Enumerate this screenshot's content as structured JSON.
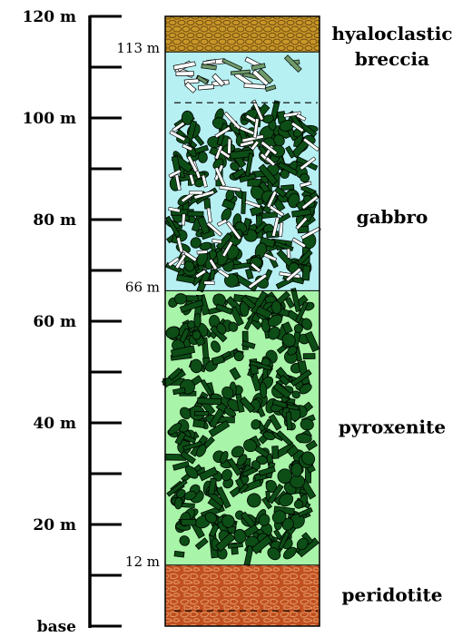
{
  "scale": {
    "labels": [
      {
        "value": 0,
        "text": "base"
      },
      {
        "value": 20,
        "text": "20 m"
      },
      {
        "value": 40,
        "text": "40 m"
      },
      {
        "value": 60,
        "text": "60 m"
      },
      {
        "value": 80,
        "text": "80 m"
      },
      {
        "value": 100,
        "text": "100 m"
      },
      {
        "value": 120,
        "text": "120 m"
      }
    ],
    "minor_ticks": [
      10,
      30,
      50,
      70,
      90,
      110
    ]
  },
  "boundaries": [
    {
      "value": 113,
      "text": "113 m"
    },
    {
      "value": 66,
      "text": "66 m"
    },
    {
      "value": 12,
      "text": "12 m"
    }
  ],
  "units": [
    {
      "id": "peridotite",
      "lines": [
        "peridotite"
      ],
      "from": 0,
      "to": 12,
      "fill": "#c0501f",
      "pattern": "cobble-red"
    },
    {
      "id": "pyroxenite",
      "lines": [
        "pyroxenite"
      ],
      "from": 12,
      "to": 66,
      "fill": "#a8f4a8",
      "pattern": "crystals-dark"
    },
    {
      "id": "gabbro",
      "lines": [
        "gabbro"
      ],
      "from": 66,
      "to": 103,
      "fill": "#b6f0f2",
      "pattern": "crystals-dark-white"
    },
    {
      "id": "gabbro-top",
      "lines": [],
      "from": 103,
      "to": 113,
      "fill": "#b6f0f2",
      "pattern": "sticks-sparse"
    },
    {
      "id": "hyaloclastic-breccia",
      "lines": [
        "hyaloclastic",
        "breccia"
      ],
      "from": 113,
      "to": 120,
      "fill": "#c89628",
      "pattern": "cobble-gold"
    }
  ],
  "internal_dashes": [
    3,
    103
  ],
  "colors": {
    "outline": "#000000",
    "crystal_dark": "#0d4d16",
    "crystal_light": "#ffffff",
    "stick_green": "#6f9a6a"
  }
}
